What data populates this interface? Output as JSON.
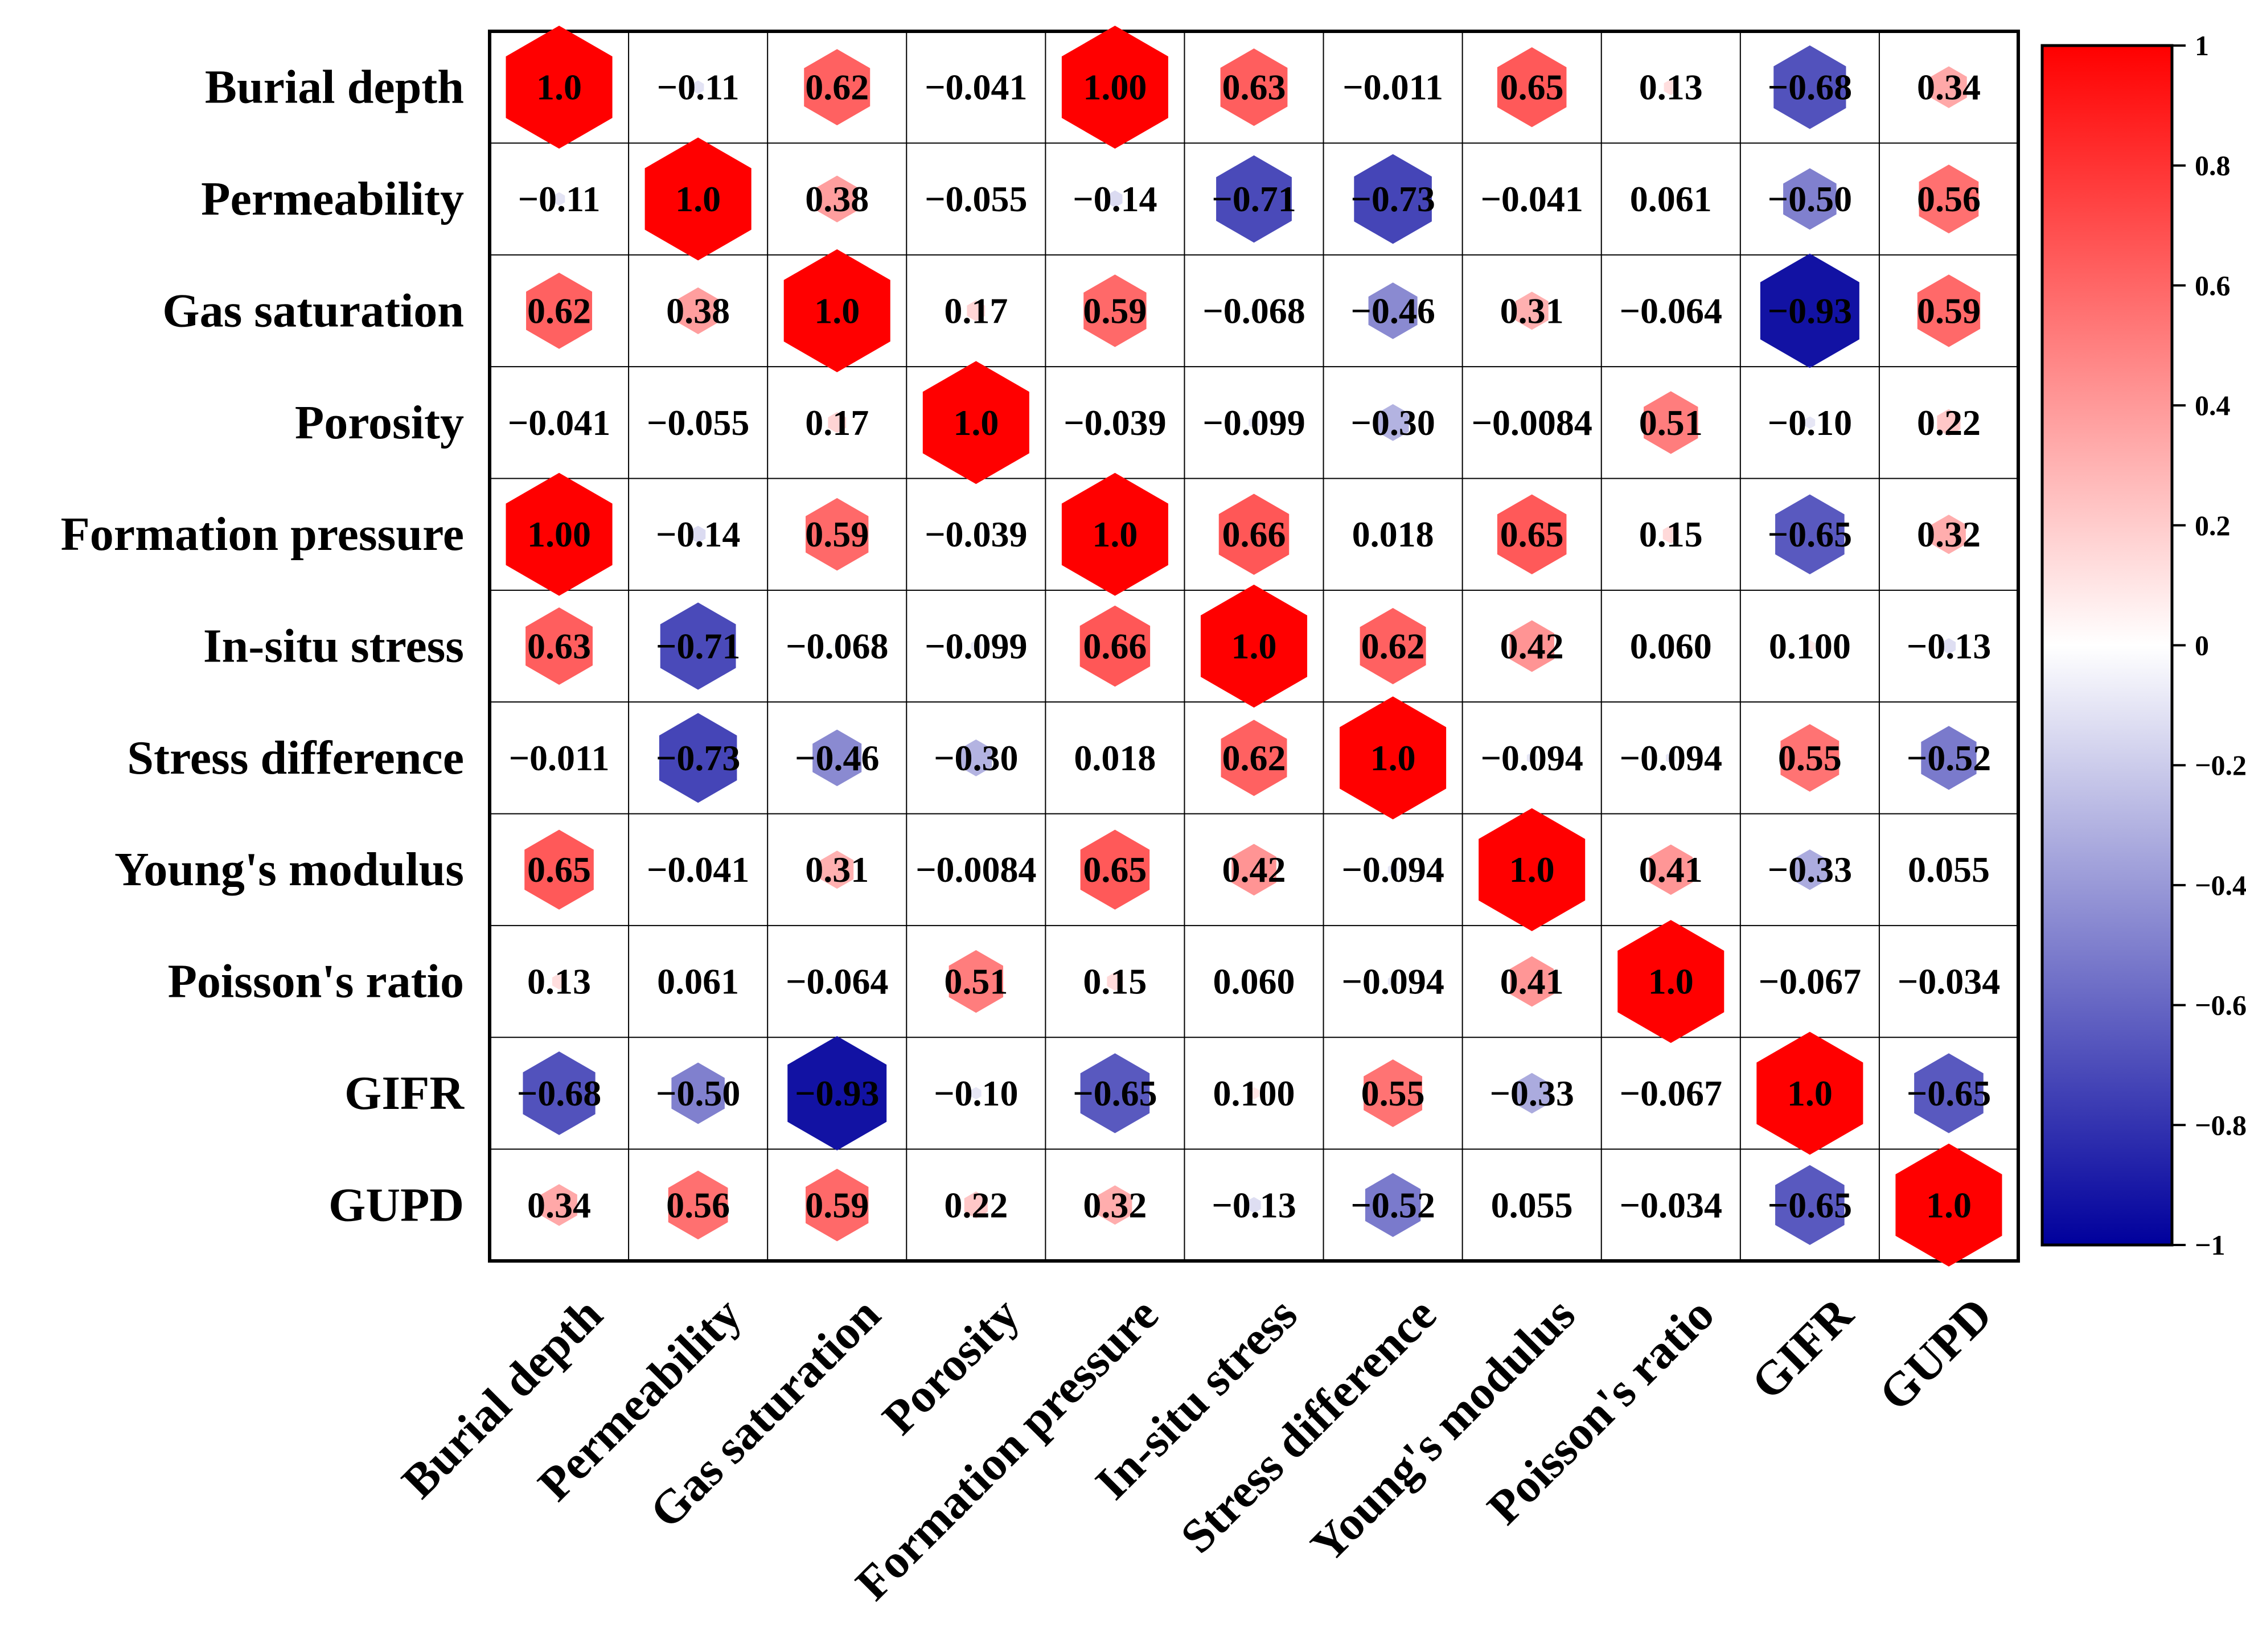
{
  "chart_data": {
    "type": "heatmap",
    "title": "",
    "xlabel": "",
    "ylabel": "",
    "variables": [
      "Burial depth",
      "Permeability",
      "Gas saturation",
      "Porosity",
      "Formation pressure",
      "In-situ stress",
      "Stress difference",
      "Young's modulus",
      "Poisson's ratio",
      "GIFR",
      "GUPD"
    ],
    "values": [
      [
        1.0,
        -0.11,
        0.62,
        -0.041,
        1.0,
        0.63,
        -0.011,
        0.65,
        0.13,
        -0.68,
        0.34
      ],
      [
        -0.11,
        1.0,
        0.38,
        -0.055,
        -0.14,
        -0.71,
        -0.73,
        -0.041,
        0.061,
        -0.5,
        0.56
      ],
      [
        0.62,
        0.38,
        1.0,
        0.17,
        0.59,
        -0.068,
        -0.46,
        0.31,
        -0.064,
        -0.93,
        0.59
      ],
      [
        -0.041,
        -0.055,
        0.17,
        1.0,
        -0.039,
        -0.099,
        -0.3,
        -0.0084,
        0.51,
        -0.1,
        0.22
      ],
      [
        1.0,
        -0.14,
        0.59,
        -0.039,
        1.0,
        0.66,
        0.018,
        0.65,
        0.15,
        -0.65,
        0.32
      ],
      [
        0.63,
        -0.71,
        -0.068,
        -0.099,
        0.66,
        1.0,
        0.62,
        0.42,
        0.06,
        0.1,
        -0.13
      ],
      [
        -0.011,
        -0.73,
        -0.46,
        -0.3,
        0.018,
        0.62,
        1.0,
        -0.094,
        -0.094,
        0.55,
        -0.52
      ],
      [
        0.65,
        -0.041,
        0.31,
        -0.0084,
        0.65,
        0.42,
        -0.094,
        1.0,
        0.41,
        -0.33,
        0.055
      ],
      [
        0.13,
        0.061,
        -0.064,
        0.51,
        0.15,
        0.06,
        -0.094,
        0.41,
        1.0,
        -0.067,
        -0.034
      ],
      [
        -0.68,
        -0.5,
        -0.93,
        -0.1,
        -0.65,
        0.1,
        0.55,
        -0.33,
        -0.067,
        1.0,
        -0.65
      ],
      [
        0.34,
        0.56,
        0.59,
        0.22,
        0.32,
        -0.13,
        -0.52,
        0.055,
        -0.034,
        -0.65,
        1.0
      ]
    ],
    "labels": [
      [
        "1.0",
        "−0.11",
        "0.62",
        "−0.041",
        "1.00",
        "0.63",
        "−0.011",
        "0.65",
        "0.13",
        "−0.68",
        "0.34"
      ],
      [
        "−0.11",
        "1.0",
        "0.38",
        "−0.055",
        "−0.14",
        "−0.71",
        "−0.73",
        "−0.041",
        "0.061",
        "−0.50",
        "0.56"
      ],
      [
        "0.62",
        "0.38",
        "1.0",
        "0.17",
        "0.59",
        "−0.068",
        "−0.46",
        "0.31",
        "−0.064",
        "−0.93",
        "0.59"
      ],
      [
        "−0.041",
        "−0.055",
        "0.17",
        "1.0",
        "−0.039",
        "−0.099",
        "−0.30",
        "−0.0084",
        "0.51",
        "−0.10",
        "0.22"
      ],
      [
        "1.00",
        "−0.14",
        "0.59",
        "−0.039",
        "1.0",
        "0.66",
        "0.018",
        "0.65",
        "0.15",
        "−0.65",
        "0.32"
      ],
      [
        "0.63",
        "−0.71",
        "−0.068",
        "−0.099",
        "0.66",
        "1.0",
        "0.62",
        "0.42",
        "0.060",
        "0.100",
        "−0.13"
      ],
      [
        "−0.011",
        "−0.73",
        "−0.46",
        "−0.30",
        "0.018",
        "0.62",
        "1.0",
        "−0.094",
        "−0.094",
        "0.55",
        "−0.52"
      ],
      [
        "0.65",
        "−0.041",
        "0.31",
        "−0.0084",
        "0.65",
        "0.42",
        "−0.094",
        "1.0",
        "0.41",
        "−0.33",
        "0.055"
      ],
      [
        "0.13",
        "0.061",
        "−0.064",
        "0.51",
        "0.15",
        "0.060",
        "−0.094",
        "0.41",
        "1.0",
        "−0.067",
        "−0.034"
      ],
      [
        "−0.68",
        "−0.50",
        "−0.93",
        "−0.10",
        "−0.65",
        "0.100",
        "0.55",
        "−0.33",
        "−0.067",
        "1.0",
        "−0.65"
      ],
      [
        "0.34",
        "0.56",
        "0.59",
        "0.22",
        "0.32",
        "−0.13",
        "−0.52",
        "0.055",
        "−0.034",
        "−0.65",
        "1.0"
      ]
    ],
    "marker_shape": "hexagon",
    "marker_size_encodes": "absolute correlation",
    "grid": true,
    "colorbar": {
      "position": "right",
      "range": [
        -1,
        1
      ],
      "ticks": [
        1,
        0.8,
        0.6,
        0.4,
        0.2,
        0,
        -0.2,
        -0.4,
        -0.6,
        -0.8,
        -1
      ],
      "tick_labels": [
        "1",
        "0.8",
        "0.6",
        "0.4",
        "0.2",
        "0",
        "−0.2",
        "−0.4",
        "−0.6",
        "−0.8",
        "−1"
      ],
      "colors": {
        "positive": "#ff0000",
        "zero": "#ffffff",
        "negative": "#00009c"
      }
    }
  }
}
